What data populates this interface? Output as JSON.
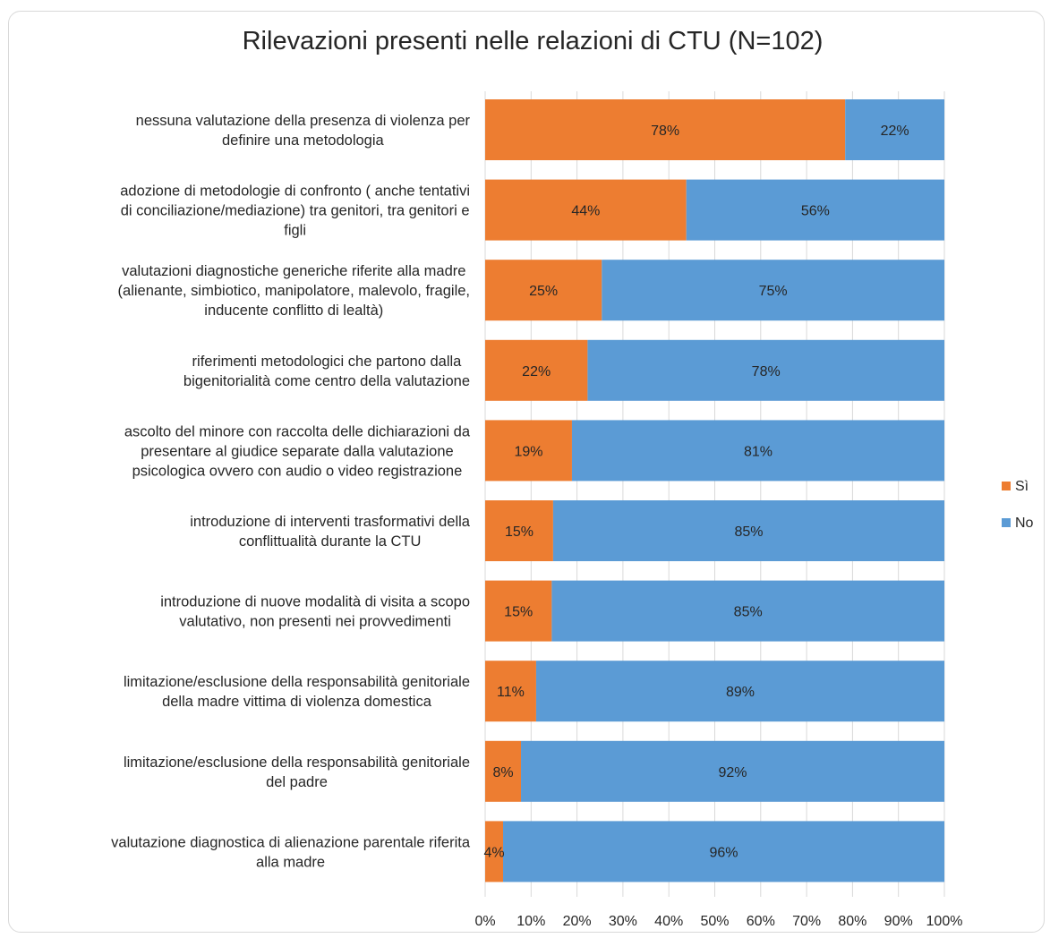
{
  "chart_data": {
    "type": "bar",
    "orientation": "horizontal",
    "stacked": true,
    "title": "Rilevazioni presenti nelle relazioni di CTU (N=102)",
    "categories": [
      [
        "nessuna valutazione della presenza di violenza per",
        "definire una metodologia"
      ],
      [
        "adozione di metodologie di confronto ( anche tentativi",
        "di conciliazione/mediazione) tra genitori, tra genitori e",
        "figli"
      ],
      [
        "valutazioni diagnostiche generiche riferite alla madre",
        "(alienante, simbiotico, manipolatore, malevolo, fragile,",
        "inducente conflitto di lealtà)"
      ],
      [
        "riferimenti metodologici che partono dalla",
        "bigenitorialità come centro della valutazione"
      ],
      [
        "ascolto del minore con raccolta delle dichiarazioni da",
        "presentare al giudice separate dalla valutazione",
        "psicologica ovvero con audio o video registrazione"
      ],
      [
        "introduzione di interventi trasformativi della",
        "conflittualità durante la CTU"
      ],
      [
        "introduzione di nuove modalità di visita a scopo",
        "valutativo, non presenti nei provvedimenti"
      ],
      [
        "limitazione/esclusione della responsabilità genitoriale",
        "della madre vittima di violenza domestica"
      ],
      [
        "limitazione/esclusione della responsabilità genitoriale",
        "del padre"
      ],
      [
        "valutazione diagnostica di alienazione parentale riferita",
        "alla madre"
      ]
    ],
    "series": [
      {
        "name": "Sì",
        "color": "#ed7d31",
        "values": [
          78.4,
          43.8,
          25.4,
          22.3,
          18.9,
          14.8,
          14.5,
          11.1,
          7.8,
          3.9
        ],
        "labels": [
          "78%",
          "44%",
          "25%",
          "22%",
          "19%",
          "15%",
          "15%",
          "11%",
          "8%",
          "4%"
        ]
      },
      {
        "name": "No",
        "color": "#5b9bd5",
        "values": [
          21.6,
          56.2,
          74.6,
          77.7,
          81.1,
          85.2,
          85.5,
          88.9,
          92.2,
          96.1
        ],
        "labels": [
          "22%",
          "56%",
          "75%",
          "78%",
          "81%",
          "85%",
          "85%",
          "89%",
          "92%",
          "96%"
        ]
      }
    ],
    "xlim": [
      0,
      100
    ],
    "xticks": [
      0,
      10,
      20,
      30,
      40,
      50,
      60,
      70,
      80,
      90,
      100
    ],
    "xtick_labels": [
      "0%",
      "10%",
      "20%",
      "30%",
      "40%",
      "50%",
      "60%",
      "70%",
      "80%",
      "90%",
      "100%"
    ],
    "gridlines": true,
    "gridline_color": "#d9d9d9",
    "legend_position": "right"
  }
}
